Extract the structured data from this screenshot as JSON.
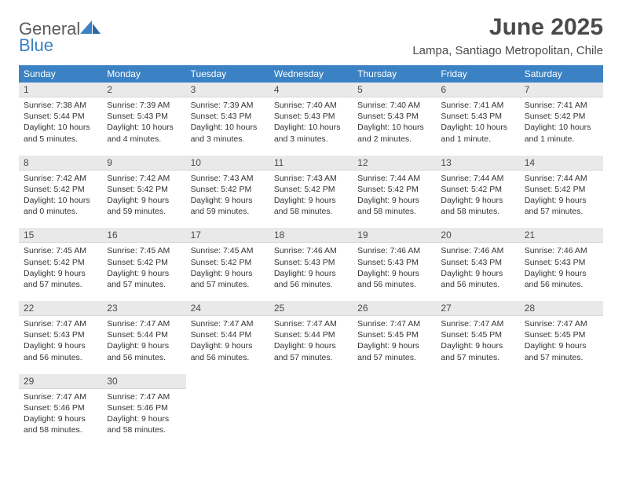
{
  "brand": {
    "word1": "General",
    "word2": "Blue"
  },
  "title": "June 2025",
  "location": "Lampa, Santiago Metropolitan, Chile",
  "colors": {
    "header_bg": "#3b82c4",
    "header_text": "#ffffff",
    "daynum_bg": "#e9e9e9",
    "text": "#333333",
    "title_text": "#4a4a4a"
  },
  "typography": {
    "title_fontsize": 30,
    "location_fontsize": 15,
    "dow_fontsize": 12,
    "daynum_fontsize": 12,
    "body_fontsize": 10.5
  },
  "days_of_week": [
    "Sunday",
    "Monday",
    "Tuesday",
    "Wednesday",
    "Thursday",
    "Friday",
    "Saturday"
  ],
  "weeks": [
    [
      {
        "num": "1",
        "sunrise": "Sunrise: 7:38 AM",
        "sunset": "Sunset: 5:44 PM",
        "daylight": "Daylight: 10 hours and 5 minutes."
      },
      {
        "num": "2",
        "sunrise": "Sunrise: 7:39 AM",
        "sunset": "Sunset: 5:43 PM",
        "daylight": "Daylight: 10 hours and 4 minutes."
      },
      {
        "num": "3",
        "sunrise": "Sunrise: 7:39 AM",
        "sunset": "Sunset: 5:43 PM",
        "daylight": "Daylight: 10 hours and 3 minutes."
      },
      {
        "num": "4",
        "sunrise": "Sunrise: 7:40 AM",
        "sunset": "Sunset: 5:43 PM",
        "daylight": "Daylight: 10 hours and 3 minutes."
      },
      {
        "num": "5",
        "sunrise": "Sunrise: 7:40 AM",
        "sunset": "Sunset: 5:43 PM",
        "daylight": "Daylight: 10 hours and 2 minutes."
      },
      {
        "num": "6",
        "sunrise": "Sunrise: 7:41 AM",
        "sunset": "Sunset: 5:43 PM",
        "daylight": "Daylight: 10 hours and 1 minute."
      },
      {
        "num": "7",
        "sunrise": "Sunrise: 7:41 AM",
        "sunset": "Sunset: 5:42 PM",
        "daylight": "Daylight: 10 hours and 1 minute."
      }
    ],
    [
      {
        "num": "8",
        "sunrise": "Sunrise: 7:42 AM",
        "sunset": "Sunset: 5:42 PM",
        "daylight": "Daylight: 10 hours and 0 minutes."
      },
      {
        "num": "9",
        "sunrise": "Sunrise: 7:42 AM",
        "sunset": "Sunset: 5:42 PM",
        "daylight": "Daylight: 9 hours and 59 minutes."
      },
      {
        "num": "10",
        "sunrise": "Sunrise: 7:43 AM",
        "sunset": "Sunset: 5:42 PM",
        "daylight": "Daylight: 9 hours and 59 minutes."
      },
      {
        "num": "11",
        "sunrise": "Sunrise: 7:43 AM",
        "sunset": "Sunset: 5:42 PM",
        "daylight": "Daylight: 9 hours and 58 minutes."
      },
      {
        "num": "12",
        "sunrise": "Sunrise: 7:44 AM",
        "sunset": "Sunset: 5:42 PM",
        "daylight": "Daylight: 9 hours and 58 minutes."
      },
      {
        "num": "13",
        "sunrise": "Sunrise: 7:44 AM",
        "sunset": "Sunset: 5:42 PM",
        "daylight": "Daylight: 9 hours and 58 minutes."
      },
      {
        "num": "14",
        "sunrise": "Sunrise: 7:44 AM",
        "sunset": "Sunset: 5:42 PM",
        "daylight": "Daylight: 9 hours and 57 minutes."
      }
    ],
    [
      {
        "num": "15",
        "sunrise": "Sunrise: 7:45 AM",
        "sunset": "Sunset: 5:42 PM",
        "daylight": "Daylight: 9 hours and 57 minutes."
      },
      {
        "num": "16",
        "sunrise": "Sunrise: 7:45 AM",
        "sunset": "Sunset: 5:42 PM",
        "daylight": "Daylight: 9 hours and 57 minutes."
      },
      {
        "num": "17",
        "sunrise": "Sunrise: 7:45 AM",
        "sunset": "Sunset: 5:42 PM",
        "daylight": "Daylight: 9 hours and 57 minutes."
      },
      {
        "num": "18",
        "sunrise": "Sunrise: 7:46 AM",
        "sunset": "Sunset: 5:43 PM",
        "daylight": "Daylight: 9 hours and 56 minutes."
      },
      {
        "num": "19",
        "sunrise": "Sunrise: 7:46 AM",
        "sunset": "Sunset: 5:43 PM",
        "daylight": "Daylight: 9 hours and 56 minutes."
      },
      {
        "num": "20",
        "sunrise": "Sunrise: 7:46 AM",
        "sunset": "Sunset: 5:43 PM",
        "daylight": "Daylight: 9 hours and 56 minutes."
      },
      {
        "num": "21",
        "sunrise": "Sunrise: 7:46 AM",
        "sunset": "Sunset: 5:43 PM",
        "daylight": "Daylight: 9 hours and 56 minutes."
      }
    ],
    [
      {
        "num": "22",
        "sunrise": "Sunrise: 7:47 AM",
        "sunset": "Sunset: 5:43 PM",
        "daylight": "Daylight: 9 hours and 56 minutes."
      },
      {
        "num": "23",
        "sunrise": "Sunrise: 7:47 AM",
        "sunset": "Sunset: 5:44 PM",
        "daylight": "Daylight: 9 hours and 56 minutes."
      },
      {
        "num": "24",
        "sunrise": "Sunrise: 7:47 AM",
        "sunset": "Sunset: 5:44 PM",
        "daylight": "Daylight: 9 hours and 56 minutes."
      },
      {
        "num": "25",
        "sunrise": "Sunrise: 7:47 AM",
        "sunset": "Sunset: 5:44 PM",
        "daylight": "Daylight: 9 hours and 57 minutes."
      },
      {
        "num": "26",
        "sunrise": "Sunrise: 7:47 AM",
        "sunset": "Sunset: 5:45 PM",
        "daylight": "Daylight: 9 hours and 57 minutes."
      },
      {
        "num": "27",
        "sunrise": "Sunrise: 7:47 AM",
        "sunset": "Sunset: 5:45 PM",
        "daylight": "Daylight: 9 hours and 57 minutes."
      },
      {
        "num": "28",
        "sunrise": "Sunrise: 7:47 AM",
        "sunset": "Sunset: 5:45 PM",
        "daylight": "Daylight: 9 hours and 57 minutes."
      }
    ],
    [
      {
        "num": "29",
        "sunrise": "Sunrise: 7:47 AM",
        "sunset": "Sunset: 5:46 PM",
        "daylight": "Daylight: 9 hours and 58 minutes."
      },
      {
        "num": "30",
        "sunrise": "Sunrise: 7:47 AM",
        "sunset": "Sunset: 5:46 PM",
        "daylight": "Daylight: 9 hours and 58 minutes."
      },
      null,
      null,
      null,
      null,
      null
    ]
  ]
}
